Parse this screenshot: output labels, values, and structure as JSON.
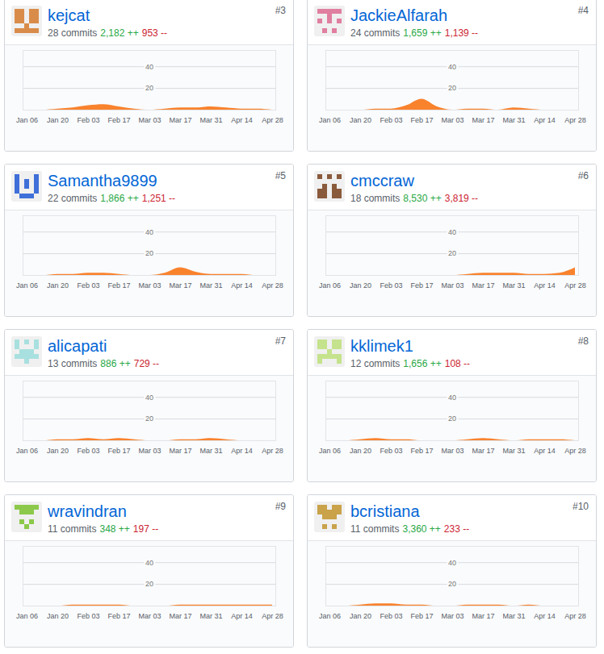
{
  "chart_data": [
    {
      "type": "area",
      "title": "kejcat",
      "subtitle": [
        "28 commits",
        "2,182 ++",
        "953 --"
      ],
      "annotations": [
        "#3"
      ],
      "categories": [
        "Jan 06",
        null,
        "Jan 20",
        null,
        "Feb 03",
        null,
        "Feb 17",
        null,
        "Mar 03",
        null,
        "Mar 17",
        null,
        "Mar 31",
        null,
        "Apr 14",
        null,
        "Apr 28"
      ],
      "values": [
        0,
        0,
        1,
        2,
        4,
        5,
        3,
        1,
        0,
        1,
        2,
        2,
        3,
        2,
        1,
        1,
        0
      ],
      "color": "#f9822d",
      "ylim": [
        0,
        55
      ],
      "yticks": [
        20,
        40
      ],
      "grid": true
    },
    {
      "type": "area",
      "title": "JackieAlfarah",
      "subtitle": [
        "24 commits",
        "1,659 ++",
        "1,139 --"
      ],
      "annotations": [
        "#4"
      ],
      "categories": [
        "Jan 06",
        null,
        "Jan 20",
        null,
        "Feb 03",
        null,
        "Feb 17",
        null,
        "Mar 03",
        null,
        "Mar 17",
        null,
        "Mar 31",
        null,
        "Apr 14",
        null,
        "Apr 28"
      ],
      "values": [
        0,
        0,
        0,
        1,
        1,
        4,
        10,
        3,
        0,
        1,
        1,
        0,
        2,
        1,
        0,
        0,
        0
      ],
      "color": "#f9822d",
      "ylim": [
        0,
        55
      ],
      "yticks": [
        20,
        40
      ],
      "grid": true
    },
    {
      "type": "area",
      "title": "Samantha9899",
      "subtitle": [
        "22 commits",
        "1,866 ++",
        "1,251 --"
      ],
      "annotations": [
        "#5"
      ],
      "categories": [
        "Jan 06",
        null,
        "Jan 20",
        null,
        "Feb 03",
        null,
        "Feb 17",
        null,
        "Mar 03",
        null,
        "Mar 17",
        null,
        "Mar 31",
        null,
        "Apr 14",
        null,
        "Apr 28"
      ],
      "values": [
        0,
        0,
        1,
        1,
        2,
        2,
        1,
        0,
        0,
        2,
        7,
        3,
        1,
        1,
        1,
        0,
        0
      ],
      "color": "#f9822d",
      "ylim": [
        0,
        55
      ],
      "yticks": [
        20,
        40
      ],
      "grid": true
    },
    {
      "type": "area",
      "title": "cmccraw",
      "subtitle": [
        "18 commits",
        "8,530 ++",
        "3,819 --"
      ],
      "annotations": [
        "#6"
      ],
      "categories": [
        "Jan 06",
        null,
        "Jan 20",
        null,
        "Feb 03",
        null,
        "Feb 17",
        null,
        "Mar 03",
        null,
        "Mar 17",
        null,
        "Mar 31",
        null,
        "Apr 14",
        null,
        "Apr 28"
      ],
      "values": [
        0,
        0,
        0,
        0,
        0,
        0,
        0,
        0,
        0,
        1,
        2,
        2,
        2,
        1,
        1,
        2,
        7
      ],
      "color": "#f9822d",
      "ylim": [
        0,
        55
      ],
      "yticks": [
        20,
        40
      ],
      "grid": true
    },
    {
      "type": "area",
      "title": "alicapati",
      "subtitle": [
        "13 commits",
        "886 ++",
        "729 --"
      ],
      "annotations": [
        "#7"
      ],
      "categories": [
        "Jan 06",
        null,
        "Jan 20",
        null,
        "Feb 03",
        null,
        "Feb 17",
        null,
        "Mar 03",
        null,
        "Mar 17",
        null,
        "Mar 31",
        null,
        "Apr 14",
        null,
        "Apr 28"
      ],
      "values": [
        0,
        0,
        1,
        1,
        2,
        1,
        2,
        1,
        0,
        0,
        1,
        1,
        2,
        1,
        0,
        0,
        0
      ],
      "color": "#f9822d",
      "ylim": [
        0,
        55
      ],
      "yticks": [
        20,
        40
      ],
      "grid": true
    },
    {
      "type": "area",
      "title": "kklimek1",
      "subtitle": [
        "12 commits",
        "1,656 ++",
        "108 --"
      ],
      "annotations": [
        "#8"
      ],
      "categories": [
        "Jan 06",
        null,
        "Jan 20",
        null,
        "Feb 03",
        null,
        "Feb 17",
        null,
        "Mar 03",
        null,
        "Mar 17",
        null,
        "Mar 31",
        null,
        "Apr 14",
        null,
        "Apr 28"
      ],
      "values": [
        0,
        0,
        1,
        2,
        1,
        1,
        0,
        0,
        0,
        1,
        2,
        1,
        0,
        1,
        1,
        1,
        0
      ],
      "color": "#f9822d",
      "ylim": [
        0,
        55
      ],
      "yticks": [
        20,
        40
      ],
      "grid": true
    },
    {
      "type": "area",
      "title": "wravindran",
      "subtitle": [
        "11 commits",
        "348 ++",
        "197 --"
      ],
      "annotations": [
        "#9"
      ],
      "categories": [
        "Jan 06",
        null,
        "Jan 20",
        null,
        "Feb 03",
        null,
        "Feb 17",
        null,
        "Mar 03",
        null,
        "Mar 17",
        null,
        "Mar 31",
        null,
        "Apr 14",
        null,
        "Apr 28"
      ],
      "values": [
        0,
        0,
        0,
        1,
        1,
        1,
        1,
        0,
        0,
        0,
        1,
        1,
        1,
        1,
        1,
        1,
        1
      ],
      "color": "#f9822d",
      "ylim": [
        0,
        55
      ],
      "yticks": [
        20,
        40
      ],
      "grid": true
    },
    {
      "type": "area",
      "title": "bcristiana",
      "subtitle": [
        "11 commits",
        "3,360 ++",
        "233 --"
      ],
      "annotations": [
        "#10"
      ],
      "categories": [
        "Jan 06",
        null,
        "Jan 20",
        null,
        "Feb 03",
        null,
        "Feb 17",
        null,
        "Mar 03",
        null,
        "Mar 17",
        null,
        "Mar 31",
        null,
        "Apr 14",
        null,
        "Apr 28"
      ],
      "values": [
        0,
        0,
        1,
        2,
        2,
        1,
        1,
        0,
        0,
        1,
        1,
        1,
        0,
        1,
        0,
        0,
        0
      ],
      "color": "#f9822d",
      "ylim": [
        0,
        55
      ],
      "yticks": [
        20,
        40
      ],
      "grid": true
    }
  ]
}
